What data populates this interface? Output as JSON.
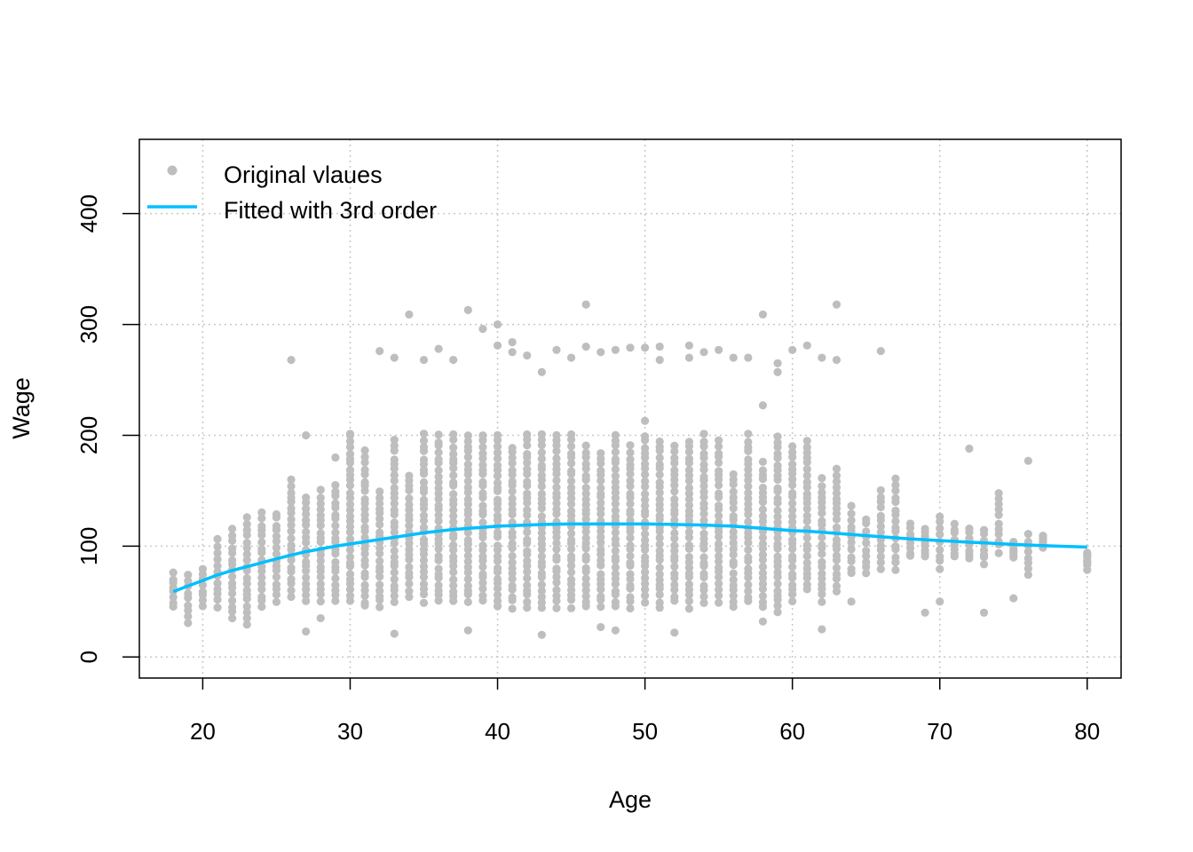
{
  "chart_data": {
    "type": "scatter",
    "title": "",
    "xlabel": "Age",
    "ylabel": "Wage",
    "xlim": [
      15.7,
      82.3
    ],
    "ylim": [
      -19,
      467
    ],
    "x_ticks": [
      20,
      30,
      40,
      50,
      60,
      70,
      80
    ],
    "y_ticks": [
      0,
      100,
      200,
      300,
      400
    ],
    "grid": true,
    "legend_position": "top-left",
    "colors": {
      "points": "#BEBEBE",
      "fit_line": "#00BFFF",
      "grid": "#C8C8C8"
    },
    "legend": [
      {
        "label": "Original vlaues",
        "marker": "point"
      },
      {
        "label": "Fitted with 3rd order",
        "marker": "line"
      }
    ],
    "series": [
      {
        "name": "Original vlaues",
        "kind": "points",
        "age_min": 18,
        "age_max": 80,
        "main_band_by_age": [
          [
            18,
            45,
            75
          ],
          [
            19,
            30,
            75
          ],
          [
            20,
            45,
            80
          ],
          [
            21,
            45,
            105
          ],
          [
            22,
            35,
            115
          ],
          [
            23,
            30,
            125
          ],
          [
            24,
            45,
            130
          ],
          [
            25,
            50,
            130
          ],
          [
            26,
            55,
            160
          ],
          [
            27,
            50,
            145
          ],
          [
            28,
            50,
            150
          ],
          [
            29,
            50,
            155
          ],
          [
            30,
            50,
            200
          ],
          [
            31,
            45,
            185
          ],
          [
            32,
            45,
            150
          ],
          [
            33,
            50,
            195
          ],
          [
            34,
            55,
            165
          ],
          [
            35,
            50,
            200
          ],
          [
            36,
            50,
            200
          ],
          [
            37,
            50,
            200
          ],
          [
            38,
            50,
            200
          ],
          [
            39,
            50,
            200
          ],
          [
            40,
            45,
            200
          ],
          [
            41,
            45,
            190
          ],
          [
            42,
            45,
            200
          ],
          [
            43,
            45,
            200
          ],
          [
            44,
            45,
            200
          ],
          [
            45,
            45,
            200
          ],
          [
            46,
            45,
            190
          ],
          [
            47,
            45,
            185
          ],
          [
            48,
            45,
            200
          ],
          [
            49,
            45,
            190
          ],
          [
            50,
            50,
            200
          ],
          [
            51,
            45,
            195
          ],
          [
            52,
            50,
            190
          ],
          [
            53,
            45,
            195
          ],
          [
            54,
            50,
            200
          ],
          [
            55,
            50,
            195
          ],
          [
            56,
            45,
            165
          ],
          [
            57,
            50,
            200
          ],
          [
            58,
            45,
            175
          ],
          [
            59,
            40,
            200
          ],
          [
            60,
            50,
            190
          ],
          [
            61,
            60,
            195
          ],
          [
            62,
            50,
            160
          ],
          [
            63,
            60,
            170
          ],
          [
            64,
            75,
            135
          ],
          [
            65,
            75,
            125
          ],
          [
            66,
            80,
            150
          ],
          [
            67,
            80,
            160
          ],
          [
            68,
            90,
            120
          ],
          [
            69,
            90,
            115
          ],
          [
            70,
            80,
            127
          ],
          [
            71,
            90,
            120
          ],
          [
            72,
            90,
            115
          ],
          [
            73,
            85,
            115
          ],
          [
            74,
            95,
            148
          ],
          [
            75,
            90,
            105
          ],
          [
            76,
            75,
            110
          ],
          [
            77,
            100,
            110
          ],
          [
            80,
            80,
            95
          ]
        ],
        "outliers": [
          [
            26,
            268
          ],
          [
            27,
            200
          ],
          [
            27,
            23
          ],
          [
            28,
            35
          ],
          [
            29,
            180
          ],
          [
            30,
            200
          ],
          [
            33,
            21
          ],
          [
            34,
            309
          ],
          [
            32,
            276
          ],
          [
            33,
            270
          ],
          [
            35,
            268
          ],
          [
            36,
            278
          ],
          [
            37,
            268
          ],
          [
            38,
            313
          ],
          [
            38,
            24
          ],
          [
            39,
            296
          ],
          [
            40,
            300
          ],
          [
            40,
            281
          ],
          [
            41,
            284
          ],
          [
            41,
            275
          ],
          [
            42,
            272
          ],
          [
            43,
            257
          ],
          [
            43,
            20
          ],
          [
            44,
            277
          ],
          [
            45,
            270
          ],
          [
            46,
            318
          ],
          [
            46,
            280
          ],
          [
            47,
            275
          ],
          [
            47,
            27
          ],
          [
            48,
            277
          ],
          [
            48,
            24
          ],
          [
            49,
            279
          ],
          [
            50,
            213
          ],
          [
            50,
            279
          ],
          [
            51,
            268
          ],
          [
            51,
            280
          ],
          [
            52,
            22
          ],
          [
            53,
            270
          ],
          [
            53,
            281
          ],
          [
            54,
            275
          ],
          [
            55,
            277
          ],
          [
            56,
            270
          ],
          [
            57,
            270
          ],
          [
            58,
            309
          ],
          [
            58,
            227
          ],
          [
            58,
            32
          ],
          [
            59,
            265
          ],
          [
            59,
            257
          ],
          [
            60,
            277
          ],
          [
            61,
            281
          ],
          [
            62,
            25
          ],
          [
            62,
            270
          ],
          [
            63,
            318
          ],
          [
            63,
            268
          ],
          [
            64,
            50
          ],
          [
            66,
            276
          ],
          [
            69,
            40
          ],
          [
            70,
            50
          ],
          [
            72,
            188
          ],
          [
            73,
            40
          ],
          [
            75,
            53
          ],
          [
            76,
            177
          ]
        ]
      },
      {
        "name": "Fitted with 3rd order",
        "kind": "line",
        "x": [
          18,
          19,
          20,
          21,
          22,
          23,
          24,
          25,
          26,
          27,
          28,
          29,
          30,
          31,
          32,
          33,
          34,
          35,
          36,
          37,
          38,
          39,
          40,
          41,
          42,
          43,
          44,
          45,
          46,
          47,
          48,
          49,
          50,
          51,
          52,
          53,
          54,
          55,
          56,
          57,
          58,
          59,
          60,
          61,
          62,
          63,
          64,
          65,
          66,
          67,
          68,
          69,
          70,
          71,
          72,
          73,
          74,
          75,
          76,
          77,
          78,
          79,
          80
        ],
        "y": [
          59,
          64,
          69,
          74,
          78,
          81.5,
          85,
          88.5,
          92,
          95,
          97.5,
          100,
          102,
          104,
          106,
          108,
          110,
          112,
          113.5,
          115,
          116,
          117,
          118,
          118.5,
          119,
          119.5,
          119.8,
          120,
          120,
          120,
          120,
          120,
          120,
          119.8,
          119.6,
          119.3,
          119,
          118.5,
          118,
          117,
          116,
          115,
          114,
          113.5,
          112.5,
          111.5,
          110.5,
          109.5,
          108.5,
          107.5,
          106.5,
          105.8,
          105,
          104.3,
          103.5,
          103,
          102.2,
          101.6,
          101,
          100.5,
          100,
          99.6,
          99.2
        ]
      }
    ]
  }
}
